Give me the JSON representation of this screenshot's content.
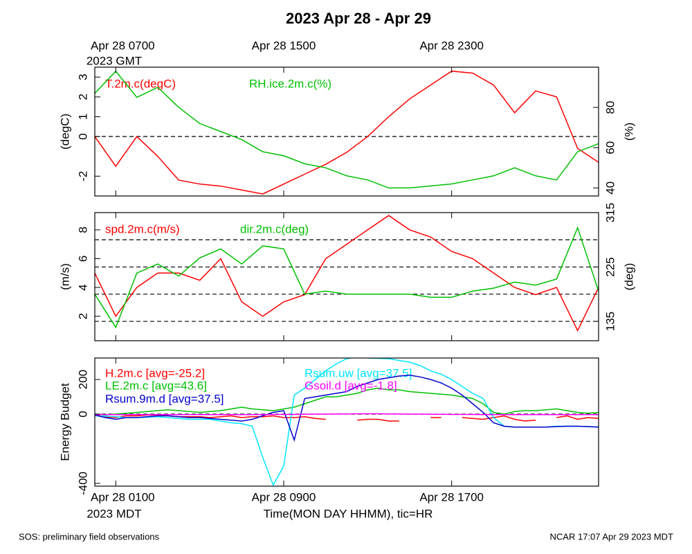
{
  "title": "2023 Apr 28 - Apr 29",
  "footer_left": "SOS: preliminary field observations",
  "footer_right": "NCAR 17:07 Apr 29 2023 MDT",
  "chart_data": [
    {
      "type": "line",
      "ylabel": "(degC)",
      "y2label": "(%)",
      "x": [
        0,
        1,
        2,
        3,
        4,
        5,
        6,
        7,
        8,
        9,
        10,
        11,
        12,
        13,
        14,
        15,
        16,
        17,
        18,
        19,
        20,
        21,
        22,
        23,
        24
      ],
      "xlim": [
        0,
        24
      ],
      "xticks": [
        {
          "value": 1,
          "label": "Apr 28 0700"
        },
        {
          "value": 9,
          "label": "Apr 28 1500"
        },
        {
          "value": 17,
          "label": "Apr 28 2300"
        }
      ],
      "x_year_label": "2023 GMT",
      "ylim": [
        -3,
        3.5
      ],
      "yticks": [
        -2,
        0,
        1,
        2,
        3
      ],
      "y2lim": [
        36,
        100
      ],
      "y2ticks": [
        40,
        60,
        80
      ],
      "hlines": [
        0
      ],
      "series": [
        {
          "name": "T.2m.c(degC)",
          "color": "#ff0000",
          "values": [
            0,
            -1.5,
            0,
            -1.0,
            -2.2,
            -2.4,
            -2.5,
            -2.7,
            -2.9,
            -2.4,
            -1.9,
            -1.4,
            -0.8,
            0,
            1.0,
            1.9,
            2.6,
            3.3,
            3.2,
            2.6,
            1.2,
            2.3,
            2.0,
            -0.6,
            -1.3
          ]
        },
        {
          "name": "RH.ice.2m.c(%)",
          "color": "#00c000",
          "axis": "y2",
          "values": [
            87,
            98,
            85,
            90,
            80,
            72,
            68,
            64,
            58,
            56,
            52,
            50,
            46,
            44,
            40,
            40,
            41,
            42,
            44,
            46,
            50,
            46,
            44,
            58,
            62
          ]
        }
      ]
    },
    {
      "type": "line",
      "ylabel": "(m/s)",
      "y2label": "(deg)",
      "x": [
        0,
        1,
        2,
        3,
        4,
        5,
        6,
        7,
        8,
        9,
        10,
        11,
        12,
        13,
        14,
        15,
        16,
        17,
        18,
        19,
        20,
        21,
        22,
        23,
        24
      ],
      "xlim": [
        0,
        24
      ],
      "ylim": [
        0.3,
        9.2
      ],
      "yticks": [
        2,
        4,
        6,
        8
      ],
      "y2lim": [
        103,
        315
      ],
      "y2ticks": [
        135,
        225,
        315
      ],
      "y2hlines": [
        135,
        180,
        225,
        270
      ],
      "series": [
        {
          "name": "spd.2m.c(m/s)",
          "color": "#ff0000",
          "values": [
            5,
            2,
            4,
            5,
            5,
            4.5,
            6,
            3,
            2,
            3,
            3.5,
            6,
            7,
            8,
            9,
            8,
            7.5,
            6.5,
            6,
            5,
            4,
            3.5,
            4,
            1,
            4
          ]
        },
        {
          "name": "dir.2m.c(deg)",
          "color": "#00c000",
          "axis": "y2",
          "values": [
            180,
            125,
            215,
            230,
            210,
            240,
            255,
            230,
            260,
            255,
            180,
            185,
            180,
            180,
            180,
            180,
            175,
            175,
            185,
            190,
            200,
            195,
            205,
            290,
            185
          ]
        }
      ]
    },
    {
      "type": "line",
      "ylabel": "Energy Budget",
      "x": [
        0,
        0.5,
        1,
        1.5,
        2,
        2.5,
        3,
        3.5,
        4,
        4.5,
        5,
        5.5,
        6,
        6.5,
        7,
        7.5,
        8,
        8.5,
        9,
        9.5,
        10,
        10.5,
        11,
        11.5,
        12,
        12.5,
        13,
        13.5,
        14,
        14.5,
        15,
        15.5,
        16,
        16.5,
        17,
        17.5,
        18,
        18.5,
        19,
        19.5,
        20,
        20.5,
        21,
        21.5,
        22,
        22.5,
        23,
        23.5,
        24
      ],
      "xlim": [
        0,
        24
      ],
      "xticks": [
        {
          "value": 1,
          "label": "Apr 28 0100"
        },
        {
          "value": 9,
          "label": "Apr 28 0900"
        },
        {
          "value": 17,
          "label": "Apr 28 1700"
        }
      ],
      "x_year_label": "2023 MDT",
      "xlabel": "Time(MON DAY HHMM), tic=HR",
      "ylim": [
        -416,
        324
      ],
      "yticks": [
        -400,
        0,
        200
      ],
      "hlines": [
        0
      ],
      "series": [
        {
          "name": "H.2m.c [avg=-25.2]",
          "color": "#ff0000",
          "values": [
            -5,
            -15,
            -20,
            -10,
            -10,
            -5,
            -5,
            -10,
            -15,
            -15,
            -15,
            -20,
            -15,
            -10,
            -20,
            -15,
            -15,
            -10,
            -20,
            -20,
            -15,
            -25,
            -30,
            null,
            null,
            -35,
            -30,
            -30,
            -40,
            -40,
            null,
            null,
            -20,
            -20,
            null,
            -20,
            -25,
            -30,
            -20,
            -10,
            -30,
            -40,
            -35,
            null,
            -20,
            -10,
            -30,
            -20,
            -25
          ]
        },
        {
          "name": "LE.2m.c [avg=43.6]",
          "color": "#00c000",
          "values": [
            0,
            -5,
            0,
            5,
            10,
            15,
            20,
            25,
            20,
            15,
            10,
            15,
            20,
            30,
            40,
            30,
            25,
            20,
            30,
            40,
            60,
            80,
            100,
            100,
            110,
            120,
            140,
            150,
            140,
            140,
            130,
            125,
            120,
            115,
            110,
            100,
            90,
            60,
            10,
            0,
            15,
            20,
            20,
            25,
            30,
            20,
            10,
            5,
            10
          ]
        },
        {
          "name": "Rsum.uw [avg=37.5]",
          "color": "#00e5ff",
          "values": [
            -10,
            -12,
            -15,
            -20,
            -20,
            -18,
            -15,
            -20,
            -25,
            -30,
            -30,
            -30,
            -40,
            -50,
            -55,
            -70,
            -250,
            -410,
            -300,
            110,
            150,
            200,
            250,
            290,
            320,
            330,
            324,
            322,
            320,
            310,
            300,
            280,
            250,
            230,
            200,
            160,
            120,
            90,
            -20,
            -70,
            -75,
            -75,
            -75,
            -75,
            -70,
            -70,
            -70,
            -72,
            -75
          ]
        },
        {
          "name": "Rsum.9m.d [avg=37.5]",
          "color": "#0000cc",
          "values": [
            -5,
            -20,
            -30,
            -20,
            -20,
            -15,
            -10,
            -10,
            -15,
            -20,
            -20,
            -25,
            -30,
            -35,
            -40,
            -30,
            -10,
            10,
            20,
            -150,
            90,
            100,
            110,
            120,
            130,
            160,
            180,
            200,
            210,
            220,
            225,
            215,
            200,
            180,
            150,
            110,
            60,
            10,
            -50,
            -70,
            -75,
            -75,
            -75,
            -75,
            -72,
            -70,
            -70,
            -72,
            -75
          ]
        },
        {
          "name": "Gsoil.d [avg=-1.8]",
          "color": "#ff00ff",
          "values": [
            -3,
            -3,
            -3,
            -3,
            -3,
            -3,
            -3,
            -3,
            -3,
            -3,
            -3,
            -3,
            -3,
            -3,
            -3,
            -3,
            -3,
            -2,
            -2,
            -2,
            -1,
            0,
            0,
            1,
            1,
            2,
            2,
            2,
            1,
            1,
            0,
            0,
            -1,
            -1,
            -2,
            -2,
            -2,
            -3,
            -3,
            -3,
            -3,
            -3,
            -3,
            -3,
            -3,
            -3,
            -3,
            -3,
            -3
          ]
        }
      ]
    }
  ]
}
